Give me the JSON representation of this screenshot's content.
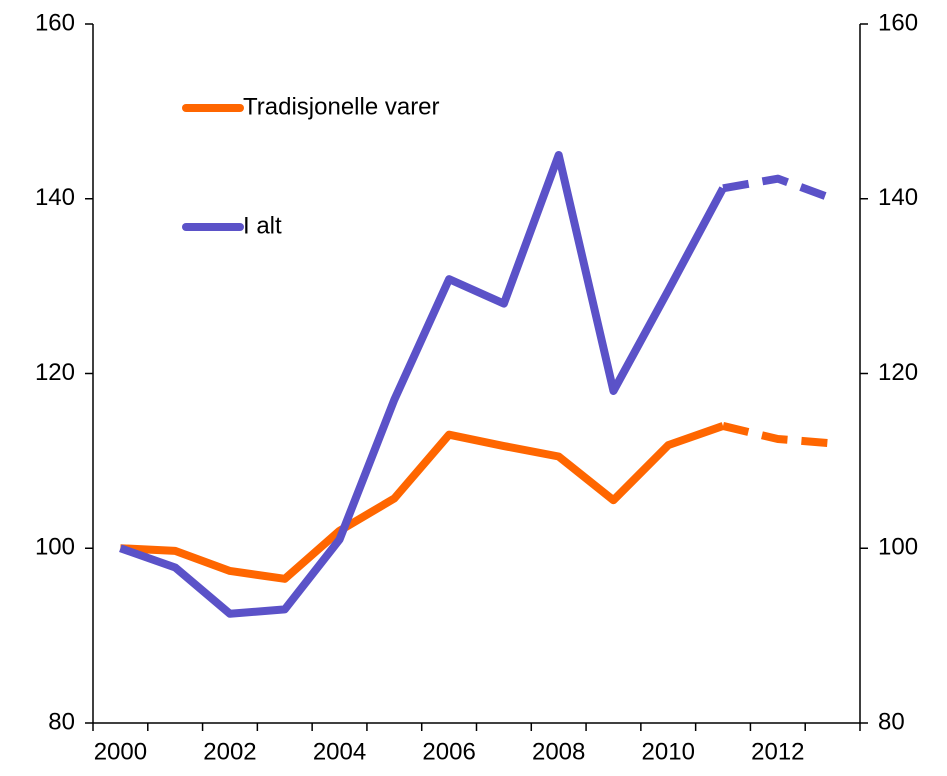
{
  "chart_data": {
    "type": "line",
    "categories": [
      "2000",
      null,
      "2002",
      null,
      "2004",
      null,
      "2006",
      null,
      "2008",
      null,
      "2010",
      null,
      "2012",
      null
    ],
    "series": [
      {
        "name": "Tradisjonelle varer",
        "color": "#ff6600",
        "dashed_from": 11,
        "values": [
          100,
          99.7,
          97.4,
          96.5,
          102,
          105.7,
          113,
          111.7,
          110.5,
          105.5,
          111.8,
          114,
          112.5,
          112
        ]
      },
      {
        "name": "I alt",
        "color": "#5b52c8",
        "dashed_from": 11,
        "values": [
          100,
          97.8,
          92.5,
          93,
          101,
          117,
          130.8,
          128,
          145,
          118,
          129.5,
          141.2,
          142.3,
          140
        ]
      }
    ],
    "ylim": [
      80,
      160
    ],
    "yticks": [
      80,
      100,
      120,
      140,
      160
    ],
    "y2lim": [
      80,
      160
    ],
    "y2ticks": [
      80,
      100,
      120,
      140,
      160
    ],
    "grid": false
  }
}
